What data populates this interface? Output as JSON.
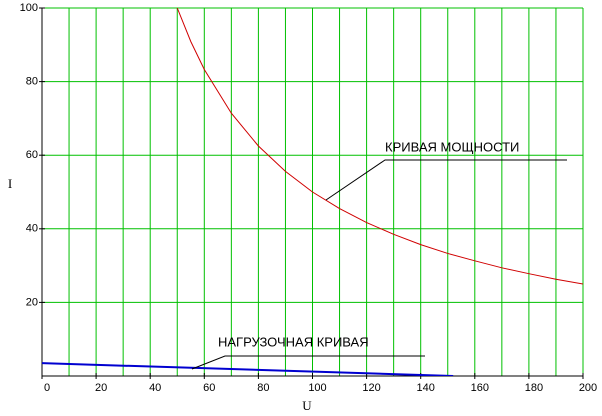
{
  "chart_data": {
    "type": "line",
    "x_label": "U",
    "y_label": "I",
    "xlim": [
      0,
      200
    ],
    "xticks": [
      0,
      20,
      40,
      60,
      80,
      100,
      120,
      140,
      160,
      180,
      200
    ],
    "ylim": [
      0,
      100
    ],
    "yticks": [
      20,
      40,
      60,
      80,
      100
    ],
    "grid": true,
    "grid_color": "#00c000",
    "series": [
      {
        "name": "КРИВАЯ МОЩНОСТИ",
        "color": "#d00000",
        "x": [
          50,
          55,
          60,
          70,
          80,
          90,
          100,
          110,
          120,
          130,
          140,
          150,
          160,
          170,
          180,
          190,
          200
        ],
        "values": [
          100,
          90.9,
          83.3,
          71.4,
          62.5,
          55.6,
          50,
          45.5,
          41.7,
          38.5,
          35.7,
          33.3,
          31.3,
          29.4,
          27.8,
          26.3,
          25
        ]
      },
      {
        "name": "НАГРУЗОЧНАЯ КРИВАЯ",
        "color": "#0000d0",
        "x": [
          0,
          152
        ],
        "values": [
          3.5,
          0
        ]
      }
    ]
  }
}
